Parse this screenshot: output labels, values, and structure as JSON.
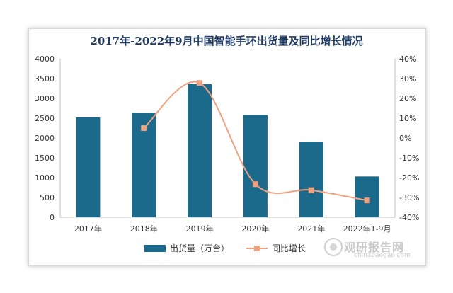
{
  "chart_data": {
    "type": "bar+line",
    "title": "2017年-2022年9月中国智能手环出货量及同比增长情况",
    "categories": [
      "2017年",
      "2018年",
      "2019年",
      "2020年",
      "2021年",
      "2022年1-9月"
    ],
    "series": [
      {
        "name": "出货量（万台）",
        "type": "bar",
        "axis": "left",
        "color": "#1b6a8c",
        "values": [
          2520,
          2630,
          3360,
          2580,
          1910,
          1030
        ]
      },
      {
        "name": "同比增长",
        "type": "line",
        "axis": "right",
        "color": "#f0a17f",
        "values": [
          null,
          5.0,
          27.8,
          -23.3,
          -26.3,
          -31.5
        ]
      }
    ],
    "y_left": {
      "min": 0,
      "max": 4000,
      "step": 500,
      "ticks": [
        "0",
        "500",
        "1000",
        "1500",
        "2000",
        "2500",
        "3000",
        "3500",
        "4000"
      ]
    },
    "y_right": {
      "min": -40,
      "max": 40,
      "step": 10,
      "ticks": [
        "-40%",
        "-30%",
        "-20%",
        "-10%",
        "0%",
        "10%",
        "20%",
        "30%",
        "40%"
      ]
    },
    "grid": false,
    "legend_position": "bottom"
  },
  "watermark": {
    "cn": "观研报告网",
    "en": "chinabaogao.com"
  }
}
